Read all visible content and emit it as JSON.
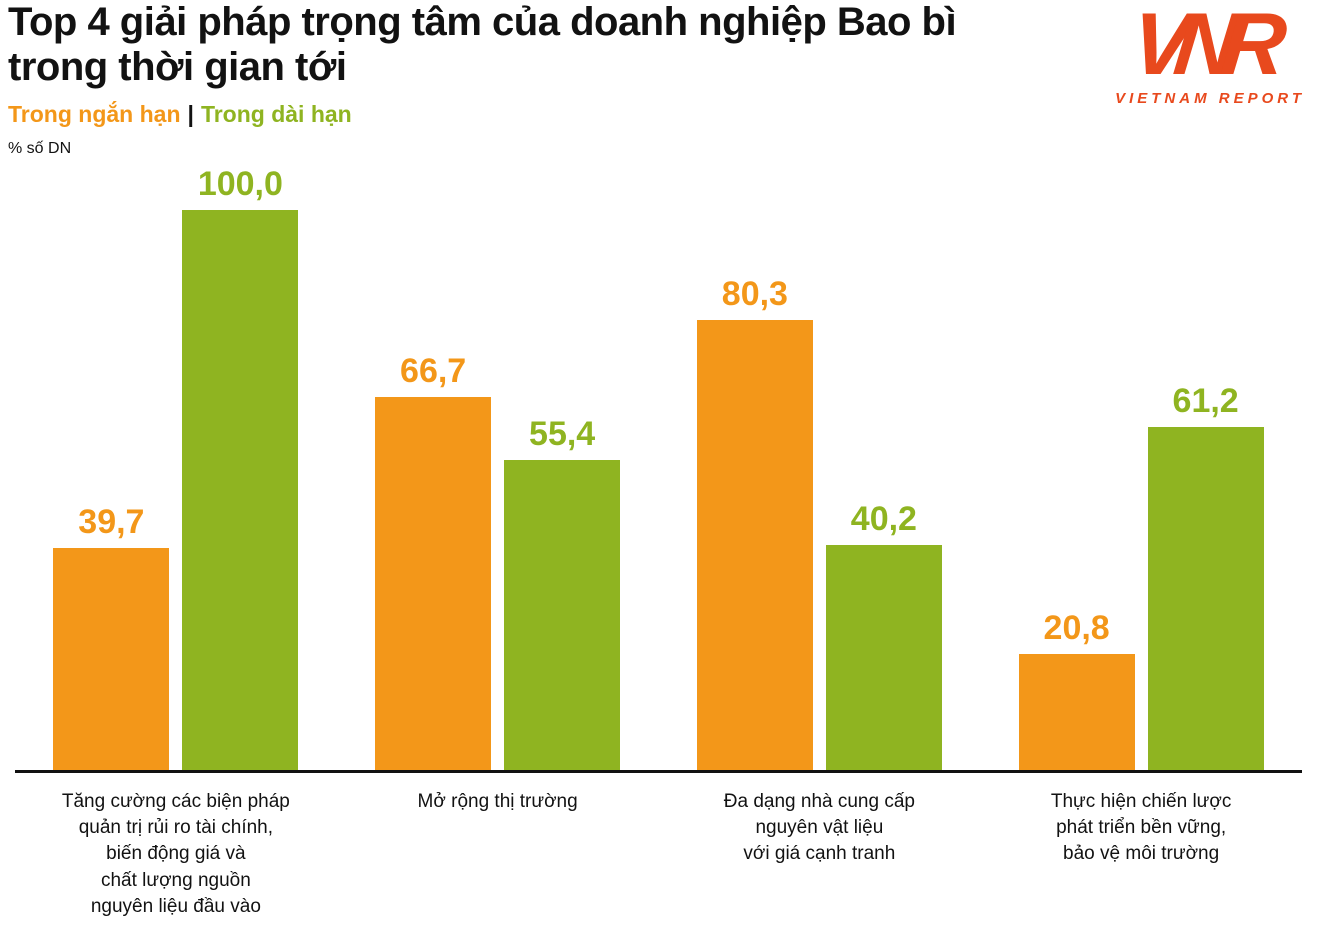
{
  "header": {
    "title": "Top 4 giải pháp trọng tâm của doanh nghiệp Bao bì\ntrong thời gian tới",
    "unit_label": "% số DN"
  },
  "legend": {
    "short_term_label": "Trong ngắn hạn",
    "separator": "|",
    "long_term_label": "Trong dài hạn"
  },
  "logo": {
    "monogram": "VNR",
    "text": "VIETNAM REPORT",
    "color": "#E8491D"
  },
  "colors": {
    "short_term": "#F39719",
    "long_term": "#8FB421",
    "axis": "#111111",
    "text": "#121212"
  },
  "chart_data": {
    "type": "bar",
    "title": "Top 4 giải pháp trọng tâm của doanh nghiệp Bao bì trong thời gian tới",
    "xlabel": "",
    "ylabel": "% số DN",
    "ylim": [
      0,
      100
    ],
    "grid": false,
    "legend_position": "top-left",
    "categories": [
      "Tăng cường các biện pháp\nquản trị rủi ro tài chính,\nbiến động giá và\nchất lượng nguồn\nnguyên liệu đầu vào",
      "Mở rộng thị trường",
      "Đa dạng nhà cung cấp\nnguyên vật liệu\nvới giá cạnh tranh",
      "Thực hiện chiến lược\nphát triển bền vững,\nbảo vệ môi trường"
    ],
    "series": [
      {
        "name": "Trong ngắn hạn",
        "key": "short-term",
        "color": "#F39719",
        "values": [
          39.7,
          66.7,
          80.3,
          20.8
        ],
        "labels": [
          "39,7",
          "66,7",
          "80,3",
          "20,8"
        ]
      },
      {
        "name": "Trong dài hạn",
        "key": "long-term",
        "color": "#8FB421",
        "values": [
          100.0,
          55.4,
          40.2,
          61.2
        ],
        "labels": [
          "100,0",
          "55,4",
          "40,2",
          "61,2"
        ]
      }
    ]
  }
}
